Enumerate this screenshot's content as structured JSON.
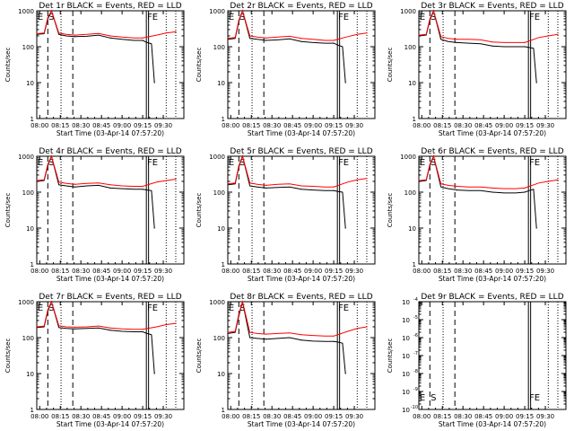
{
  "chart_data": [
    {
      "type": "line",
      "title": "Det 1r BLACK = Events, RED = LLD",
      "xlabel": "Start Time (03-Apr-14 07:57:20)",
      "ylabel": "Counts/sec",
      "yscale": "log",
      "ylim": [
        1,
        1000
      ],
      "ytick_labels": [
        "1",
        "10",
        "100",
        "1000"
      ],
      "xtick_labels": [
        "08:00",
        "08:15",
        "08:30",
        "08:45",
        "09:00",
        "09:15",
        "09:30"
      ],
      "markers": [
        "E",
        "S",
        "FE"
      ],
      "series": [
        {
          "name": "Events",
          "color": "#000000",
          "values": [
            220,
            230,
            600,
            1000,
            220,
            200,
            190,
            195,
            210,
            175,
            160,
            150,
            150,
            130,
            120,
            10
          ]
        },
        {
          "name": "LLD",
          "color": "#ff0000",
          "values": [
            230,
            240,
            650,
            1000,
            240,
            220,
            210,
            220,
            235,
            200,
            185,
            175,
            175,
            210,
            240,
            260
          ]
        }
      ]
    },
    {
      "type": "line",
      "title": "Det 2r BLACK = Events, RED = LLD",
      "xlabel": "Start Time (03-Apr-14 07:57:20)",
      "ylabel": "Counts/sec",
      "yscale": "log",
      "ylim": [
        1,
        1000
      ],
      "ytick_labels": [
        "1",
        "10",
        "100",
        "1000"
      ],
      "xtick_labels": [
        "08:00",
        "08:15",
        "08:30",
        "08:45",
        "09:00",
        "09:15",
        "09:30"
      ],
      "markers": [
        "E",
        "S",
        "FE"
      ],
      "series": [
        {
          "name": "Events",
          "color": "#000000",
          "values": [
            160,
            170,
            500,
            1000,
            170,
            160,
            150,
            155,
            165,
            140,
            130,
            125,
            125,
            110,
            100,
            10
          ]
        },
        {
          "name": "LLD",
          "color": "#ff0000",
          "values": [
            170,
            180,
            550,
            1000,
            200,
            185,
            175,
            185,
            195,
            170,
            160,
            150,
            150,
            190,
            220,
            240
          ]
        }
      ]
    },
    {
      "type": "line",
      "title": "Det 3r BLACK = Events, RED = LLD",
      "xlabel": "Start Time (03-Apr-14 07:57:20)",
      "ylabel": "Counts/sec",
      "yscale": "log",
      "ylim": [
        1,
        1000
      ],
      "ytick_labels": [
        "1",
        "10",
        "100",
        "1000"
      ],
      "xtick_labels": [
        "08:00",
        "08:15",
        "08:30",
        "08:45",
        "09:00",
        "09:15",
        "09:30"
      ],
      "markers": [
        "E",
        "S",
        "FE"
      ],
      "series": [
        {
          "name": "Events",
          "color": "#000000",
          "values": [
            200,
            210,
            550,
            1000,
            160,
            140,
            130,
            125,
            120,
            105,
            100,
            100,
            100,
            95,
            90,
            10
          ]
        },
        {
          "name": "LLD",
          "color": "#ff0000",
          "values": [
            210,
            220,
            600,
            1000,
            190,
            170,
            160,
            160,
            155,
            135,
            130,
            130,
            130,
            180,
            200,
            220
          ]
        }
      ]
    },
    {
      "type": "line",
      "title": "Det 4r BLACK = Events, RED = LLD",
      "xlabel": "Start Time (03-Apr-14 07:57:20)",
      "ylabel": "Counts/sec",
      "yscale": "log",
      "ylim": [
        1,
        1000
      ],
      "ytick_labels": [
        "1",
        "10",
        "100",
        "1000"
      ],
      "xtick_labels": [
        "08:00",
        "08:15",
        "08:30",
        "08:45",
        "09:00",
        "09:15",
        "09:30"
      ],
      "markers": [
        "E",
        "S",
        "FE"
      ],
      "series": [
        {
          "name": "Events",
          "color": "#000000",
          "values": [
            200,
            210,
            550,
            1000,
            160,
            150,
            140,
            150,
            155,
            130,
            125,
            120,
            120,
            115,
            110,
            10
          ]
        },
        {
          "name": "LLD",
          "color": "#ff0000",
          "values": [
            210,
            220,
            600,
            1000,
            190,
            175,
            165,
            175,
            180,
            160,
            150,
            145,
            145,
            190,
            210,
            230
          ]
        }
      ]
    },
    {
      "type": "line",
      "title": "Det 5r BLACK = Events, RED = LLD",
      "xlabel": "Start Time (03-Apr-14 07:57:20)",
      "ylabel": "Counts/sec",
      "yscale": "log",
      "ylim": [
        1,
        1000
      ],
      "ytick_labels": [
        "1",
        "10",
        "100",
        "1000"
      ],
      "xtick_labels": [
        "08:00",
        "08:15",
        "08:30",
        "08:45",
        "09:00",
        "09:15",
        "09:30"
      ],
      "markers": [
        "E",
        "S",
        "FE"
      ],
      "series": [
        {
          "name": "Events",
          "color": "#000000",
          "values": [
            160,
            170,
            500,
            1000,
            150,
            140,
            130,
            135,
            140,
            120,
            115,
            110,
            110,
            105,
            100,
            10
          ]
        },
        {
          "name": "LLD",
          "color": "#ff0000",
          "values": [
            170,
            180,
            550,
            1000,
            180,
            165,
            155,
            165,
            170,
            150,
            145,
            140,
            140,
            190,
            220,
            240
          ]
        }
      ]
    },
    {
      "type": "line",
      "title": "Det 6r BLACK = Events, RED = LLD",
      "xlabel": "Start Time (03-Apr-14 07:57:20)",
      "ylabel": "Counts/sec",
      "yscale": "log",
      "ylim": [
        1,
        1000
      ],
      "ytick_labels": [
        "1",
        "10",
        "100",
        "1000"
      ],
      "xtick_labels": [
        "08:00",
        "08:15",
        "08:30",
        "08:45",
        "09:00",
        "09:15",
        "09:30"
      ],
      "markers": [
        "E",
        "S",
        "FE"
      ],
      "series": [
        {
          "name": "Events",
          "color": "#000000",
          "values": [
            200,
            210,
            550,
            1000,
            140,
            125,
            115,
            110,
            110,
            100,
            95,
            95,
            100,
            110,
            120,
            10
          ]
        },
        {
          "name": "LLD",
          "color": "#ff0000",
          "values": [
            210,
            220,
            600,
            1000,
            170,
            155,
            145,
            140,
            140,
            130,
            125,
            125,
            130,
            180,
            200,
            220
          ]
        }
      ]
    },
    {
      "type": "line",
      "title": "Det 7r BLACK = Events, RED = LLD",
      "xlabel": "Start Time (03-Apr-14 07:57:20)",
      "ylabel": "Counts/sec",
      "yscale": "log",
      "ylim": [
        1,
        1000
      ],
      "ytick_labels": [
        "1",
        "10",
        "100",
        "1000"
      ],
      "xtick_labels": [
        "08:00",
        "08:15",
        "08:30",
        "08:45",
        "09:00",
        "09:15",
        "09:30"
      ],
      "markers": [
        "E",
        "S",
        "FE"
      ],
      "series": [
        {
          "name": "Events",
          "color": "#000000",
          "values": [
            190,
            200,
            550,
            1000,
            190,
            180,
            175,
            180,
            185,
            160,
            150,
            145,
            145,
            130,
            120,
            10
          ]
        },
        {
          "name": "LLD",
          "color": "#ff0000",
          "values": [
            200,
            210,
            600,
            1000,
            215,
            200,
            195,
            200,
            210,
            185,
            175,
            170,
            170,
            200,
            230,
            250
          ]
        }
      ]
    },
    {
      "type": "line",
      "title": "Det 8r BLACK = Events, RED = LLD",
      "xlabel": "Start Time (03-Apr-14 07:57:20)",
      "ylabel": "Counts/sec",
      "yscale": "log",
      "ylim": [
        1,
        1000
      ],
      "ytick_labels": [
        "1",
        "10",
        "100",
        "1000"
      ],
      "xtick_labels": [
        "08:00",
        "08:15",
        "08:30",
        "08:45",
        "09:00",
        "09:15",
        "09:30"
      ],
      "markers": [
        "E",
        "S",
        "FE"
      ],
      "series": [
        {
          "name": "Events",
          "color": "#000000",
          "values": [
            130,
            140,
            400,
            1000,
            100,
            95,
            90,
            95,
            100,
            85,
            80,
            78,
            78,
            75,
            70,
            10
          ]
        },
        {
          "name": "LLD",
          "color": "#ff0000",
          "values": [
            140,
            150,
            450,
            1000,
            140,
            130,
            125,
            130,
            135,
            120,
            115,
            110,
            110,
            150,
            180,
            200
          ]
        }
      ]
    },
    {
      "type": "line",
      "title": "Det 9r BLACK = Events, RED = LLD",
      "xlabel": "Start Time (03-Apr-14 07:57:20)",
      "ylabel": "Counts/sec",
      "yscale": "log",
      "ylim": [
        1e-10,
        0.0001
      ],
      "ytick_labels": [
        "10",
        "10",
        "10",
        "10",
        "10",
        "10",
        "10"
      ],
      "ytick_exponents": [
        "-10",
        "-9",
        "-8",
        "-7",
        "-6",
        "-5",
        "-4"
      ],
      "xtick_labels": [
        "08:00",
        "08:15",
        "08:30",
        "08:45",
        "09:00",
        "09:15",
        "09:30"
      ],
      "markers": [
        "E",
        "S",
        "FE"
      ],
      "series": []
    }
  ]
}
